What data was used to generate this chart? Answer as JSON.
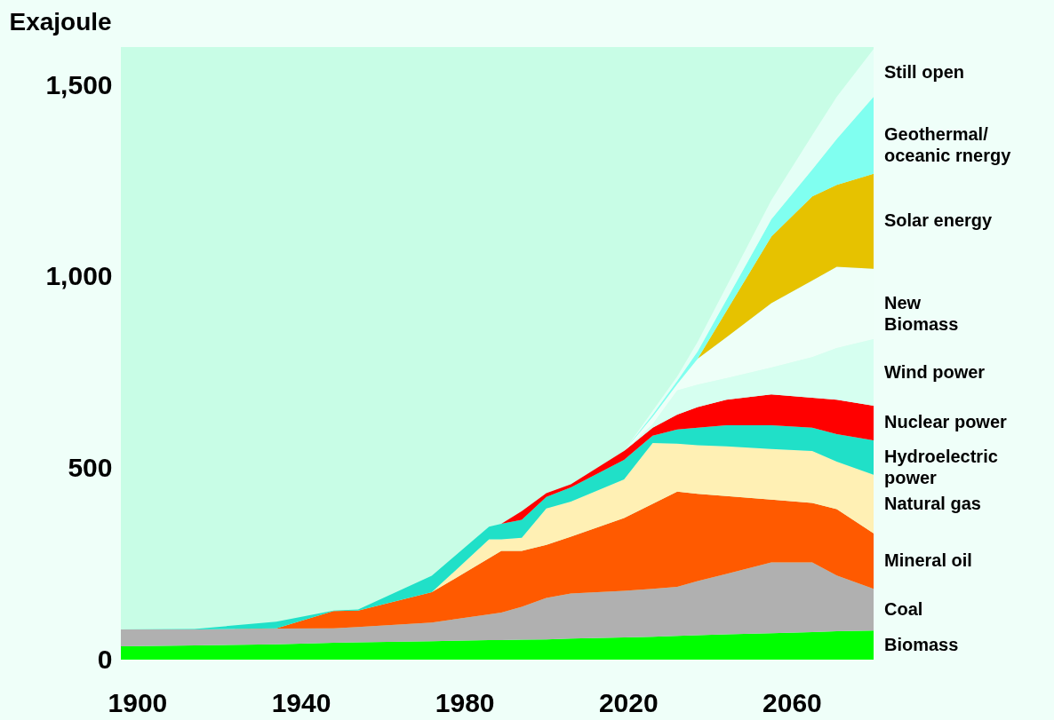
{
  "chart_data": {
    "type": "area",
    "stacked": true,
    "ylabel": "Exajoule",
    "x": [
      1896,
      1914,
      1934,
      1948,
      1954,
      1972,
      1986,
      1989,
      1994,
      2000,
      2006,
      2019,
      2026,
      2032,
      2037,
      2044,
      2055,
      2065,
      2071,
      2080
    ],
    "xlim": [
      1896,
      2080
    ],
    "xticks": [
      1900,
      1940,
      1980,
      2020,
      2060
    ],
    "ylim": [
      0,
      1600
    ],
    "yticks": [
      0,
      {
        "value": 500,
        "label": "500"
      },
      {
        "value": 1000,
        "label": "1,000"
      },
      {
        "value": 1500,
        "label": "1,500"
      }
    ],
    "series": [
      {
        "name": "Biomass",
        "color": "#00ff00",
        "values": [
          35,
          37,
          40,
          44,
          45,
          48,
          51,
          51,
          52,
          53,
          55,
          58,
          60,
          62,
          64,
          66,
          69,
          72,
          74,
          76
        ]
      },
      {
        "name": "Coal",
        "color": "#b0b0b0",
        "values": [
          44,
          42,
          41,
          38,
          40,
          49,
          67,
          72,
          86,
          108,
          118,
          122,
          125,
          128,
          141,
          158,
          185,
          182,
          146,
          109
        ]
      },
      {
        "name": "Mineral oil",
        "color": "#ff5a00",
        "values": [
          0,
          0,
          1,
          45,
          43,
          79,
          147,
          161,
          146,
          139,
          148,
          190,
          222,
          249,
          228,
          203,
          164,
          155,
          173,
          145
        ]
      },
      {
        "name": "Natural gas",
        "color": "#fff0b4",
        "values": [
          0,
          0,
          0,
          0,
          0,
          0,
          49,
          30,
          34,
          95,
          92,
          101,
          159,
          125,
          127,
          130,
          132,
          136,
          124,
          153
        ]
      },
      {
        "name": "Hydroelectric\npower",
        "color": "#20e0c8",
        "values": [
          0,
          1,
          17,
          1,
          3,
          43,
          33,
          41,
          47,
          30,
          37,
          51,
          19,
          37,
          46,
          55,
          62,
          61,
          72,
          90
        ]
      },
      {
        "name": "Nuclear power",
        "color": "#ff0000",
        "values": [
          0,
          0,
          0,
          0,
          0,
          0,
          0,
          0,
          23,
          10,
          8,
          23,
          21,
          39,
          54,
          67,
          81,
          78,
          90,
          90
        ]
      },
      {
        "name": "Wind power",
        "color": "#d6fff0",
        "values": [
          0,
          0,
          0,
          0,
          0,
          0,
          0,
          0,
          0,
          0,
          0,
          0,
          9,
          63,
          58,
          56,
          70,
          106,
          135,
          174
        ]
      },
      {
        "name": "New\nBiomass",
        "color": "#eefff8",
        "values": [
          0,
          0,
          0,
          0,
          0,
          0,
          0,
          0,
          0,
          0,
          0,
          0,
          20,
          17,
          68,
          107,
          168,
          200,
          212,
          184
        ]
      },
      {
        "name": "Solar energy",
        "color": "#e6c200",
        "values": [
          0,
          0,
          0,
          0,
          0,
          0,
          0,
          0,
          0,
          0,
          0,
          0,
          0,
          0,
          0,
          68,
          174,
          220,
          214,
          248
        ]
      },
      {
        "name": "Geothermal/\noceanic rnergy",
        "color": "#80fff0",
        "values": [
          0,
          0,
          0,
          0,
          0,
          0,
          0,
          0,
          0,
          0,
          0,
          0,
          5,
          8,
          19,
          29,
          45,
          70,
          120,
          201
        ]
      },
      {
        "name": "Still open",
        "color": "#e4fff6",
        "values": [
          0,
          0,
          0,
          0,
          0,
          0,
          0,
          0,
          0,
          0,
          0,
          0,
          10,
          12,
          25,
          35,
          50,
          90,
          110,
          125
        ]
      }
    ]
  }
}
